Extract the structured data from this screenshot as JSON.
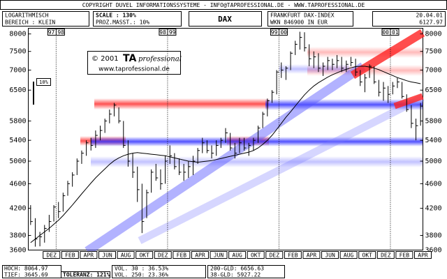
{
  "header": {
    "copyright": "COPYRIGHT  DUVEL INFORMATIONSSYSTEME - INFO@TAPROFESSIONAL.DE - WWW.TAPROFESSIONAL.DE",
    "scale_mode": "LOGARITHMISCH",
    "range": "BEREICH : KLEIN",
    "scale": "SCALE : 130%",
    "percent_scale": "PROZ.MASST.: 10%",
    "symbol": "DAX",
    "exchange": "FRANKFURT DAX-INDEX",
    "wkn": "WKN 846900   IN EUR",
    "date": "20.04.01",
    "last": "6127.97"
  },
  "watermark": {
    "copyright": "© 2001",
    "brand": "TA",
    "brand_suffix": "professional",
    "url": "www.taprofessional.de"
  },
  "scale_marker": "10%",
  "chart_data": {
    "type": "ohlc",
    "log_scale": true,
    "color": "#000000",
    "ma_color": "#000000",
    "categories": [
      null,
      null,
      null,
      null,
      "DEZ",
      null,
      null,
      null,
      "FEB",
      null,
      null,
      null,
      "APR",
      null,
      null,
      null,
      "JUN",
      null,
      null,
      null,
      "AUG",
      null,
      null,
      null,
      "OKT",
      null,
      null,
      null,
      "DEZ",
      null,
      null,
      null,
      "FEB",
      null,
      null,
      null,
      "APR",
      null,
      null,
      null,
      "JUN",
      null,
      null,
      null,
      "AUG",
      null,
      null,
      null,
      "OKT",
      null,
      null,
      null,
      "DEZ",
      null,
      null,
      null,
      "FEB",
      null,
      null,
      null,
      "APR",
      null,
      null,
      null,
      "JUN",
      null,
      null,
      null,
      "AUG",
      null,
      null,
      null,
      "OKT",
      null,
      null,
      null,
      "DEZ",
      null,
      null,
      null,
      "FEB",
      null,
      null,
      null,
      "APR"
    ],
    "year_labels": [
      [
        "97",
        "98"
      ],
      [
        "98",
        "99"
      ],
      [
        "99",
        "00"
      ],
      [
        "00",
        "01"
      ]
    ],
    "high": [
      4250,
      4050,
      3850,
      3950,
      4100,
      4250,
      4300,
      4450,
      4650,
      4800,
      5050,
      5200,
      5400,
      5450,
      5600,
      5700,
      5850,
      6050,
      6200,
      6100,
      5800,
      5400,
      5150,
      4900,
      4600,
      4500,
      4850,
      4950,
      4850,
      5100,
      5300,
      5150,
      5050,
      4950,
      5000,
      5100,
      5250,
      5450,
      5400,
      5300,
      5400,
      5450,
      5650,
      5550,
      5350,
      5450,
      5450,
      5350,
      5450,
      5700,
      6000,
      6300,
      6500,
      7000,
      7200,
      7100,
      7500,
      7800,
      8064.97,
      8050,
      7700,
      7500,
      7450,
      7200,
      7350,
      7300,
      7400,
      7350,
      7250,
      7350,
      7300,
      7000,
      6900,
      7150,
      7100,
      6750,
      6700,
      6600,
      6700,
      6800,
      6700,
      6400,
      6150,
      5850,
      6200
    ],
    "low": [
      3950,
      3645.69,
      3650,
      3700,
      3850,
      4000,
      4050,
      4150,
      4400,
      4550,
      4750,
      4950,
      5100,
      5200,
      5250,
      5400,
      5550,
      5750,
      5900,
      5750,
      5250,
      4900,
      4700,
      4300,
      3833,
      4050,
      4450,
      4650,
      4500,
      4600,
      4950,
      4850,
      4750,
      4650,
      4700,
      4750,
      4950,
      5150,
      5150,
      5050,
      5100,
      5250,
      5350,
      5200,
      5050,
      5150,
      5200,
      5100,
      5200,
      5350,
      5650,
      5900,
      6200,
      6400,
      6800,
      6750,
      7000,
      7400,
      7550,
      7500,
      7100,
      7050,
      6950,
      6850,
      7000,
      7000,
      7050,
      6950,
      6950,
      7100,
      6850,
      6600,
      6450,
      6800,
      6650,
      6350,
      6250,
      6200,
      6400,
      6550,
      6300,
      6000,
      5650,
      5400,
      5700
    ],
    "close": [
      4000,
      3750,
      3780,
      3900,
      4000,
      4220,
      4150,
      4400,
      4600,
      4750,
      5000,
      5150,
      5350,
      5300,
      5500,
      5600,
      5800,
      5950,
      6150,
      5800,
      5300,
      5000,
      4800,
      4500,
      4000,
      4450,
      4800,
      4700,
      4600,
      5000,
      5100,
      4900,
      4800,
      4800,
      4900,
      5000,
      5200,
      5350,
      5200,
      5150,
      5300,
      5400,
      5550,
      5250,
      5150,
      5350,
      5250,
      5300,
      5400,
      5650,
      5950,
      6250,
      6450,
      6950,
      7000,
      7050,
      7450,
      7700,
      7900,
      7600,
      7300,
      7350,
      7050,
      7100,
      7250,
      7150,
      7250,
      7050,
      7150,
      7200,
      6950,
      6700,
      6800,
      7100,
      6700,
      6450,
      6550,
      6400,
      6600,
      6700,
      6350,
      6050,
      5750,
      5700,
      6127.97
    ],
    "moving_average": [
      3700,
      3750,
      3800,
      3850,
      3900,
      3960,
      4020,
      4090,
      4170,
      4250,
      4340,
      4430,
      4520,
      4610,
      4700,
      4780,
      4860,
      4940,
      5010,
      5060,
      5100,
      5130,
      5150,
      5160,
      5150,
      5140,
      5130,
      5120,
      5110,
      5100,
      5080,
      5060,
      5040,
      5020,
      5000,
      4990,
      4980,
      4990,
      5000,
      5010,
      5030,
      5050,
      5070,
      5090,
      5110,
      5130,
      5150,
      5170,
      5200,
      5250,
      5320,
      5400,
      5500,
      5620,
      5750,
      5880,
      6000,
      6130,
      6260,
      6390,
      6500,
      6600,
      6680,
      6750,
      6820,
      6880,
      6930,
      6980,
      7020,
      7060,
      7090,
      7100,
      7100,
      7080,
      7050,
      7010,
      6960,
      6910,
      6860,
      6810,
      6770,
      6730,
      6700,
      6680,
      6656.63
    ],
    "ylim": [
      3600,
      8170
    ],
    "yticks": [
      3600,
      3800,
      4200,
      4600,
      5000,
      5400,
      5800,
      6500,
      7000,
      7500,
      8000
    ]
  },
  "footer": {
    "high": "HOCH: 8064.97",
    "low": "TIEF: 3645.69",
    "tolerance": "TOLERANZ: 121%",
    "vol30": "VOL. 30 : 36.53%",
    "vol250": "VOL. 250: 23.36%",
    "gld200": "200-GLD: 6656.63",
    "gld38": "38-GLD: 5927.22"
  }
}
